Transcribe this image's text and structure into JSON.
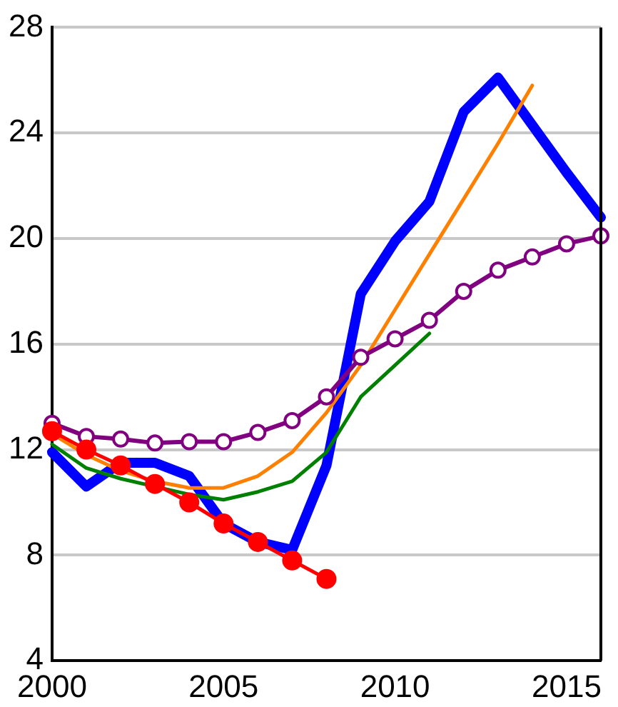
{
  "chart_data": {
    "type": "line",
    "x": [
      2000,
      2001,
      2002,
      2003,
      2004,
      2005,
      2006,
      2007,
      2008,
      2009,
      2010,
      2011,
      2012,
      2013,
      2014,
      2015,
      2016
    ],
    "series": [
      {
        "color": "#0000ff",
        "marker": "none",
        "values": [
          11.9,
          10.6,
          11.5,
          11.5,
          11.0,
          9.2,
          8.5,
          8.2,
          11.4,
          17.9,
          19.9,
          21.4,
          24.8,
          26.1,
          24.3,
          22.5,
          20.8
        ]
      },
      {
        "color": "#ff8000",
        "marker": "none",
        "values": [
          12.6,
          11.8,
          11.2,
          10.8,
          10.55,
          10.55,
          11.0,
          11.9,
          13.4,
          15.2,
          17.3,
          19.4,
          21.5,
          23.6,
          25.8,
          null,
          null
        ]
      },
      {
        "color": "#008000",
        "marker": "none",
        "values": [
          12.2,
          11.3,
          10.9,
          10.6,
          10.3,
          10.1,
          10.4,
          10.8,
          11.9,
          14.0,
          15.2,
          16.4,
          null,
          null,
          null,
          null,
          null
        ]
      },
      {
        "color": "#800080",
        "marker": "circle",
        "values": [
          13.0,
          12.5,
          12.4,
          12.25,
          12.3,
          12.3,
          12.65,
          13.1,
          14.0,
          15.5,
          16.2,
          16.9,
          18.0,
          18.8,
          19.3,
          19.8,
          20.1
        ]
      },
      {
        "color": "#ff0000",
        "marker": "circle",
        "values": [
          12.7,
          12.0,
          11.4,
          10.7,
          10.0,
          9.2,
          8.5,
          7.8,
          7.1,
          null,
          null,
          null,
          null,
          null,
          null,
          null,
          null
        ]
      }
    ],
    "xlim": [
      2000,
      2016
    ],
    "xticks": [
      2000,
      2005,
      2010,
      2015
    ],
    "ylim": [
      4,
      28
    ],
    "yticks": [
      4,
      8,
      12,
      16,
      20,
      24,
      28
    ],
    "grid": "y",
    "legend": false
  }
}
